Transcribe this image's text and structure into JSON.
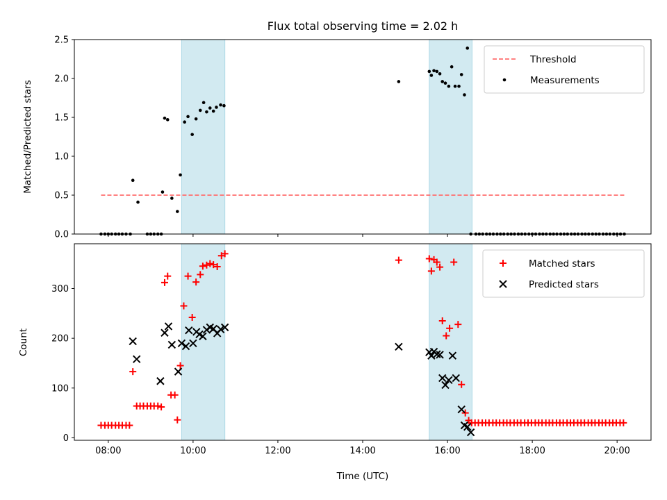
{
  "chart_data": {
    "type": "scatter",
    "title": "Flux total observing time = 2.02 h",
    "xlabel": "Time (UTC)",
    "xlim": [
      7.2,
      20.8
    ],
    "xticks": [
      8,
      10,
      12,
      14,
      16,
      18,
      20
    ],
    "xtick_labels": [
      "08:00",
      "10:00",
      "12:00",
      "14:00",
      "16:00",
      "18:00",
      "20:00"
    ],
    "shaded_intervals": [
      [
        9.73,
        10.75
      ],
      [
        15.57,
        16.58
      ]
    ],
    "shade_color": "#add8e6",
    "panels": [
      {
        "ylabel": "Matched/Predicted stars",
        "ylim": [
          0,
          2.5
        ],
        "yticks": [
          0.0,
          0.5,
          1.0,
          1.5,
          2.0,
          2.5
        ],
        "ytick_labels": [
          "0.0",
          "0.5",
          "1.0",
          "1.5",
          "2.0",
          "2.5"
        ],
        "legend_position": "upper right",
        "series": [
          {
            "name": "Threshold",
            "type": "line",
            "style": "dashed",
            "color": "#ff6e6e",
            "x": [
              7.83,
              20.17
            ],
            "y": [
              0.5,
              0.5
            ]
          },
          {
            "name": "Measurements",
            "type": "scatter",
            "marker": "dot",
            "color": "#000000",
            "x": [
              7.83,
              7.92,
              8.0,
              8.08,
              8.17,
              8.25,
              8.33,
              8.42,
              8.52,
              8.58,
              8.7,
              8.92,
              9.0,
              9.08,
              9.17,
              9.25,
              9.28,
              9.33,
              9.4,
              9.5,
              9.63,
              9.7,
              9.8,
              9.88,
              9.98,
              10.07,
              10.17,
              10.25,
              10.32,
              10.4,
              10.48,
              10.55,
              10.65,
              10.73,
              14.85,
              15.57,
              15.62,
              15.68,
              15.75,
              15.82,
              15.88,
              15.95,
              16.03,
              16.1,
              16.18,
              16.27,
              16.33,
              16.4,
              16.47,
              16.55,
              16.67,
              16.75,
              16.83,
              16.92,
              17.0,
              17.08,
              17.17,
              17.25,
              17.33,
              17.42,
              17.5,
              17.58,
              17.67,
              17.75,
              17.83,
              17.92,
              18.0,
              18.08,
              18.17,
              18.25,
              18.33,
              18.42,
              18.5,
              18.58,
              18.67,
              18.75,
              18.83,
              18.92,
              19.0,
              19.08,
              19.17,
              19.25,
              19.33,
              19.42,
              19.5,
              19.58,
              19.67,
              19.75,
              19.83,
              19.92,
              20.0,
              20.08,
              20.17
            ],
            "y": [
              0,
              0,
              0,
              0,
              0,
              0,
              0,
              0,
              0,
              0.69,
              0.41,
              0,
              0,
              0,
              0,
              0,
              0.54,
              1.49,
              1.47,
              0.46,
              0.29,
              0.76,
              1.44,
              1.51,
              1.28,
              1.48,
              1.59,
              1.69,
              1.57,
              1.62,
              1.58,
              1.63,
              1.66,
              1.65,
              1.96,
              2.09,
              2.04,
              2.1,
              2.09,
              2.06,
              1.96,
              1.94,
              1.9,
              2.15,
              1.9,
              1.9,
              2.05,
              1.79,
              2.39,
              0,
              0,
              0,
              0,
              0,
              0,
              0,
              0,
              0,
              0,
              0,
              0,
              0,
              0,
              0,
              0,
              0,
              0,
              0,
              0,
              0,
              0,
              0,
              0,
              0,
              0,
              0,
              0,
              0,
              0,
              0,
              0,
              0,
              0,
              0,
              0,
              0,
              0,
              0,
              0,
              0,
              0,
              0,
              0
            ]
          }
        ]
      },
      {
        "ylabel": "Count",
        "ylim": [
          -5,
          390
        ],
        "yticks": [
          0,
          100,
          200,
          300
        ],
        "ytick_labels": [
          "0",
          "100",
          "200",
          "300"
        ],
        "legend_position": "upper right",
        "series": [
          {
            "name": "Matched stars",
            "type": "scatter",
            "marker": "plus",
            "color": "#ff0000",
            "x": [
              7.83,
              7.92,
              8.0,
              8.08,
              8.17,
              8.25,
              8.33,
              8.42,
              8.5,
              8.58,
              8.67,
              8.75,
              8.83,
              8.92,
              9.0,
              9.08,
              9.17,
              9.25,
              9.33,
              9.4,
              9.48,
              9.57,
              9.63,
              9.7,
              9.78,
              9.88,
              9.98,
              10.07,
              10.17,
              10.23,
              10.32,
              10.4,
              10.48,
              10.57,
              10.67,
              10.75,
              14.85,
              15.57,
              15.62,
              15.68,
              15.75,
              15.82,
              15.88,
              15.97,
              16.05,
              16.15,
              16.25,
              16.33,
              16.42,
              16.5,
              16.57,
              16.65,
              16.73,
              16.82,
              16.9,
              16.98,
              17.07,
              17.15,
              17.23,
              17.32,
              17.4,
              17.48,
              17.57,
              17.65,
              17.73,
              17.82,
              17.9,
              17.98,
              18.07,
              18.15,
              18.23,
              18.32,
              18.4,
              18.48,
              18.57,
              18.65,
              18.73,
              18.82,
              18.9,
              18.98,
              19.07,
              19.15,
              19.23,
              19.32,
              19.4,
              19.48,
              19.57,
              19.65,
              19.73,
              19.82,
              19.9,
              19.98,
              20.07,
              20.15
            ],
            "y": [
              25,
              25,
              25,
              25,
              25,
              25,
              25,
              25,
              25,
              133,
              64,
              64,
              64,
              64,
              64,
              64,
              64,
              62,
              312,
              325,
              86,
              86,
              36,
              145,
              265,
              325,
              242,
              313,
              328,
              345,
              347,
              350,
              348,
              344,
              366,
              370,
              357,
              360,
              335,
              358,
              353,
              343,
              235,
              205,
              220,
              353,
              228,
              107,
              50,
              35,
              30,
              30,
              30,
              30,
              30,
              30,
              30,
              30,
              30,
              30,
              30,
              30,
              30,
              30,
              30,
              30,
              30,
              30,
              30,
              30,
              30,
              30,
              30,
              30,
              30,
              30,
              30,
              30,
              30,
              30,
              30,
              30,
              30,
              30,
              30,
              30,
              30,
              30,
              30,
              30,
              30,
              30,
              30,
              30
            ]
          },
          {
            "name": "Predicted stars",
            "type": "scatter",
            "marker": "x",
            "color": "#000000",
            "x": [
              8.58,
              8.67,
              9.23,
              9.33,
              9.42,
              9.5,
              9.65,
              9.73,
              9.83,
              9.9,
              10.0,
              10.08,
              10.15,
              10.23,
              10.32,
              10.4,
              10.48,
              10.57,
              10.65,
              10.75,
              14.85,
              15.57,
              15.62,
              15.68,
              15.75,
              15.82,
              15.88,
              15.95,
              16.03,
              16.12,
              16.2,
              16.33,
              16.4,
              16.47,
              16.55
            ],
            "y": [
              194,
              158,
              114,
              211,
              224,
              187,
              133,
              190,
              184,
              216,
              190,
              213,
              208,
              204,
              217,
              222,
              219,
              210,
              218,
              222,
              183,
              172,
              165,
              173,
              168,
              167,
              120,
              106,
              116,
              165,
              120,
              57,
              25,
              22,
              11
            ]
          }
        ]
      }
    ]
  }
}
